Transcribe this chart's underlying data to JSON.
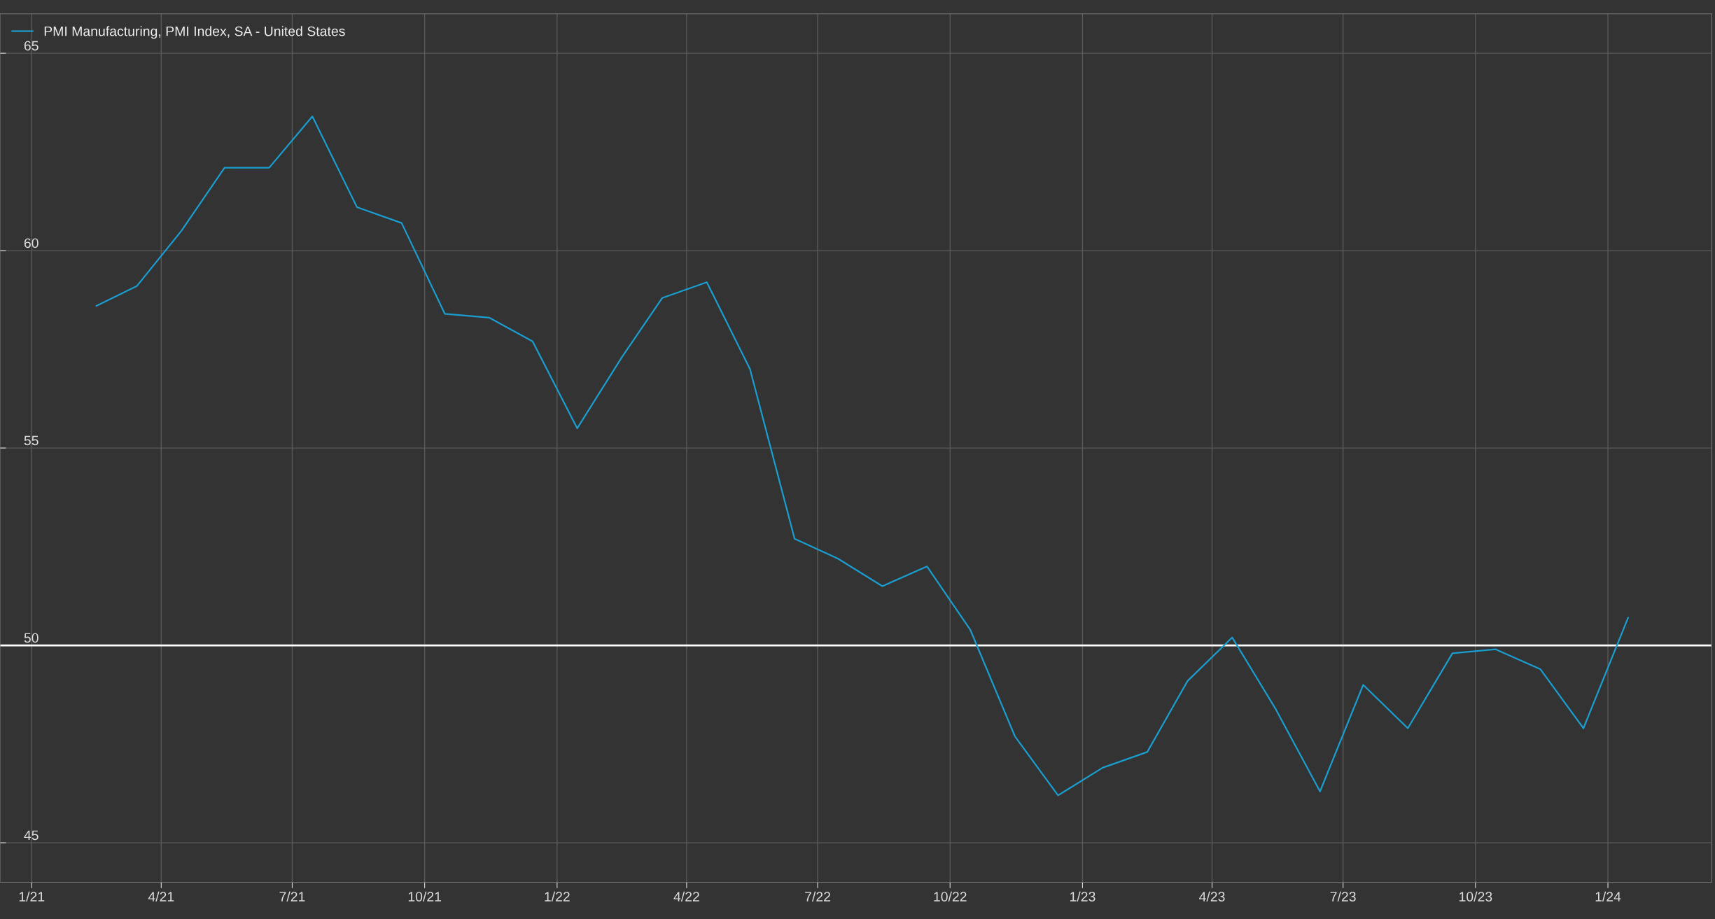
{
  "chart_data": {
    "type": "line",
    "x": [
      "2021-02-15",
      "2021-03-15",
      "2021-04-15",
      "2021-05-15",
      "2021-06-15",
      "2021-07-15",
      "2021-08-15",
      "2021-09-15",
      "2021-10-15",
      "2021-11-15",
      "2021-12-15",
      "2022-01-15",
      "2022-02-15",
      "2022-03-15",
      "2022-04-15",
      "2022-05-15",
      "2022-06-15",
      "2022-07-15",
      "2022-08-15",
      "2022-09-15",
      "2022-10-15",
      "2022-11-15",
      "2022-12-15",
      "2023-01-15",
      "2023-02-15",
      "2023-03-15",
      "2023-04-15",
      "2023-05-15",
      "2023-06-15",
      "2023-07-15",
      "2023-08-15",
      "2023-09-15",
      "2023-10-15",
      "2023-11-15",
      "2023-12-15",
      "2024-01-15"
    ],
    "series": [
      {
        "name": "PMI Manufacturing, PMI Index, SA - United States",
        "color": "#1a9ed0",
        "values": [
          58.6,
          59.1,
          60.5,
          62.1,
          62.1,
          63.4,
          61.1,
          60.7,
          58.4,
          58.3,
          57.7,
          55.5,
          57.3,
          58.8,
          59.2,
          57.0,
          52.7,
          52.2,
          51.5,
          52.0,
          50.4,
          47.7,
          46.2,
          46.9,
          47.3,
          49.1,
          50.2,
          48.4,
          46.3,
          49.0,
          47.9,
          49.8,
          49.9,
          49.4,
          47.9,
          50.7
        ]
      }
    ],
    "xlim": [
      "2020-12-10",
      "2024-03-13"
    ],
    "xticks": [
      {
        "value": "2021-01-01",
        "label": "1/21"
      },
      {
        "value": "2021-04-01",
        "label": "4/21"
      },
      {
        "value": "2021-07-01",
        "label": "7/21"
      },
      {
        "value": "2021-10-01",
        "label": "10/21"
      },
      {
        "value": "2022-01-01",
        "label": "1/22"
      },
      {
        "value": "2022-04-01",
        "label": "4/22"
      },
      {
        "value": "2022-07-01",
        "label": "7/22"
      },
      {
        "value": "2022-10-01",
        "label": "10/22"
      },
      {
        "value": "2023-01-01",
        "label": "1/23"
      },
      {
        "value": "2023-04-01",
        "label": "4/23"
      },
      {
        "value": "2023-07-01",
        "label": "7/23"
      },
      {
        "value": "2023-10-01",
        "label": "10/23"
      },
      {
        "value": "2024-01-01",
        "label": "1/24"
      }
    ],
    "ylim": [
      44,
      66
    ],
    "yticks": [
      45,
      50,
      55,
      60,
      65
    ],
    "ref_lines": [
      {
        "axis": "y",
        "value": 50,
        "color": "#ffffff",
        "line_style": "solid"
      }
    ],
    "grid": true,
    "legend": "top left",
    "marker": "none",
    "line_style": "solid"
  }
}
